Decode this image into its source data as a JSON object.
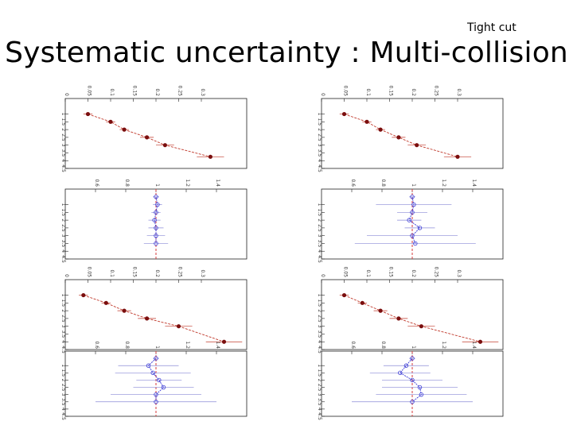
{
  "header": {
    "cut_label": "Tight cut",
    "title": "Systematic uncertainty : Multi-collision"
  },
  "chart_data": [
    {
      "type": "line",
      "panel": "upper-left",
      "style": "ratio-black",
      "x": [
        1,
        1.5,
        2,
        2.5,
        3,
        3.75
      ],
      "values": [
        0.05,
        0.1,
        0.13,
        0.18,
        0.22,
        0.32
      ],
      "errors": [
        0.01,
        0.01,
        0.01,
        0.015,
        0.02,
        0.03
      ],
      "xlim": [
        0,
        4.5
      ],
      "ylim": [
        0,
        0.4
      ],
      "x_ticks": [
        "1",
        "1.5",
        "2",
        "2.5",
        "3",
        "3.5",
        "4",
        "4.5"
      ],
      "y_ticks": [
        "0",
        "0.05",
        "0.1",
        "0.15",
        "0.2",
        "0.25",
        "0.3"
      ]
    },
    {
      "type": "line",
      "panel": "upper-right",
      "style": "ratio-black",
      "x": [
        1,
        1.5,
        2,
        2.5,
        3,
        3.75
      ],
      "values": [
        0.05,
        0.1,
        0.13,
        0.17,
        0.21,
        0.3
      ],
      "errors": [
        0.01,
        0.01,
        0.01,
        0.015,
        0.02,
        0.03
      ],
      "xlim": [
        0,
        4.5
      ],
      "ylim": [
        0,
        0.4
      ],
      "x_ticks": [
        "1",
        "1.5",
        "2",
        "2.5",
        "3",
        "3.5",
        "4",
        "4.5"
      ],
      "y_ticks": [
        "0",
        "0.05",
        "0.1",
        "0.15",
        "0.2",
        "0.25",
        "0.3"
      ]
    },
    {
      "type": "line",
      "panel": "second-left",
      "style": "ratio-blue",
      "x": [
        0.5,
        1,
        1.5,
        2,
        2.5,
        3,
        3.5
      ],
      "values": [
        1.0,
        1.01,
        1.0,
        0.99,
        1.0,
        1.0,
        1.0
      ],
      "errors": [
        0.02,
        0.03,
        0.03,
        0.04,
        0.05,
        0.06,
        0.08
      ],
      "xlim": [
        0,
        4.5
      ],
      "ylim": [
        0.4,
        1.6
      ],
      "x_ticks": [
        "1",
        "1.5",
        "2",
        "2.5",
        "3",
        "3.5",
        "4",
        "4.5"
      ],
      "y_ticks": [
        "0.6",
        "0.8",
        "1",
        "1.2",
        "1.4"
      ]
    },
    {
      "type": "line",
      "panel": "second-right",
      "style": "ratio-blue",
      "x": [
        0.5,
        1,
        1.5,
        2,
        2.5,
        3,
        3.5
      ],
      "values": [
        1.0,
        1.01,
        1.0,
        0.98,
        1.05,
        1.0,
        1.02
      ],
      "errors": [
        0.02,
        0.25,
        0.1,
        0.08,
        0.1,
        0.3,
        0.4
      ],
      "xlim": [
        0,
        4.5
      ],
      "ylim": [
        0.4,
        1.6
      ],
      "x_ticks": [
        "1",
        "1.5",
        "2",
        "2.5",
        "3",
        "3.5",
        "4",
        "4.5"
      ],
      "y_ticks": [
        "0.6",
        "0.8",
        "1",
        "1.2",
        "1.4"
      ]
    },
    {
      "type": "line",
      "panel": "third-left",
      "style": "ratio-black",
      "x": [
        1,
        1.5,
        2,
        2.5,
        3,
        4
      ],
      "values": [
        0.04,
        0.09,
        0.13,
        0.18,
        0.25,
        0.35
      ],
      "errors": [
        0.01,
        0.01,
        0.015,
        0.02,
        0.03,
        0.04
      ],
      "xlim": [
        0,
        4.5
      ],
      "ylim": [
        0,
        0.4
      ],
      "x_ticks": [
        "1",
        "1.5",
        "2",
        "2.5",
        "3",
        "3.5",
        "4",
        "4.5"
      ],
      "y_ticks": [
        "0",
        "0.05",
        "0.1",
        "0.15",
        "0.2",
        "0.25",
        "0.3"
      ]
    },
    {
      "type": "line",
      "panel": "third-right",
      "style": "ratio-black",
      "x": [
        1,
        1.5,
        2,
        2.5,
        3,
        4
      ],
      "values": [
        0.05,
        0.09,
        0.13,
        0.17,
        0.22,
        0.35
      ],
      "errors": [
        0.01,
        0.01,
        0.015,
        0.02,
        0.03,
        0.04
      ],
      "xlim": [
        0,
        4.5
      ],
      "ylim": [
        0,
        0.4
      ],
      "x_ticks": [
        "1",
        "1.5",
        "2",
        "2.5",
        "3",
        "3.5",
        "4",
        "4.5"
      ],
      "y_ticks": [
        "0",
        "0.05",
        "0.1",
        "0.15",
        "0.2",
        "0.25",
        "0.3"
      ]
    },
    {
      "type": "line",
      "panel": "bottom-left",
      "style": "ratio-blue",
      "x": [
        0.5,
        1,
        1.5,
        2,
        2.5,
        3,
        3.5
      ],
      "values": [
        1.0,
        0.95,
        0.98,
        1.02,
        1.05,
        1.0,
        1.0
      ],
      "errors": [
        0.02,
        0.2,
        0.25,
        0.15,
        0.2,
        0.3,
        0.4
      ],
      "xlim": [
        0,
        4.5
      ],
      "ylim": [
        0.4,
        1.6
      ],
      "x_ticks": [
        "1",
        "1.5",
        "2",
        "2.5",
        "3",
        "3.5",
        "4",
        "4.5"
      ],
      "y_ticks": [
        "0.6",
        "0.8",
        "1",
        "1.2",
        "1.4"
      ]
    },
    {
      "type": "line",
      "panel": "bottom-right",
      "style": "ratio-blue",
      "x": [
        0.5,
        1,
        1.5,
        2,
        2.5,
        3,
        3.5
      ],
      "values": [
        1.0,
        0.96,
        0.92,
        1.0,
        1.05,
        1.06,
        1.0
      ],
      "errors": [
        0.02,
        0.15,
        0.2,
        0.2,
        0.25,
        0.3,
        0.4
      ],
      "xlim": [
        0,
        4.5
      ],
      "ylim": [
        0.4,
        1.6
      ],
      "x_ticks": [
        "1",
        "1.5",
        "2",
        "2.5",
        "3",
        "3.5",
        "4",
        "4.5"
      ],
      "y_ticks": [
        "0.6",
        "0.8",
        "1",
        "1.2",
        "1.4"
      ]
    }
  ],
  "colors": {
    "black_marker": "#7a0e0e",
    "black_line": "#c0392b",
    "blue_marker": "#3b3bd6",
    "red_reference": "#d63b3b",
    "frame": "#222222"
  }
}
